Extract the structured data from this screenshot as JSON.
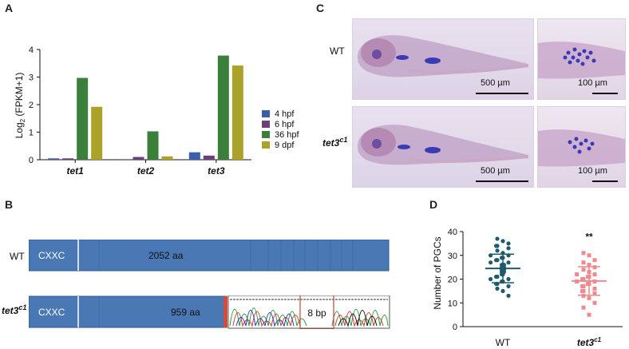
{
  "panels": {
    "a": {
      "letter": "A"
    },
    "b": {
      "letter": "B"
    },
    "c": {
      "letter": "C"
    },
    "d": {
      "letter": "D"
    }
  },
  "chart_data": [
    {
      "type": "bar",
      "panel": "A",
      "ylabel": "Log₂ (FPKM+1)",
      "ylabel_main": "Log",
      "ylabel_sub": "2",
      "ylabel_rest": " (FPKM+1)",
      "ylim": [
        0,
        4
      ],
      "yticks": [
        0,
        1,
        2,
        3,
        4
      ],
      "categories": [
        "tet1",
        "tet2",
        "tet3"
      ],
      "legend_position": "right",
      "series": [
        {
          "name": "4 hpf",
          "color": "#3a5fad",
          "values": [
            0.05,
            0.02,
            0.27
          ]
        },
        {
          "name": "6 hpf",
          "color": "#6b3f7a",
          "values": [
            0.05,
            0.1,
            0.15
          ]
        },
        {
          "name": "36 hpf",
          "color": "#3a7f3a",
          "values": [
            2.97,
            1.03,
            3.78
          ]
        },
        {
          "name": "9 dpf",
          "color": "#aba22a",
          "values": [
            1.92,
            0.12,
            3.42
          ]
        }
      ]
    },
    {
      "type": "scatter",
      "panel": "D",
      "ylabel": "Number of PGCs",
      "ylim": [
        0,
        40
      ],
      "yticks": [
        0,
        10,
        20,
        30,
        40
      ],
      "categories": [
        "WT",
        "tet3c1"
      ],
      "category_labels": [
        {
          "main": "WT",
          "sup": ""
        },
        {
          "main": "tet3",
          "sup": "c1"
        }
      ],
      "significance": "**",
      "series": [
        {
          "name": "WT",
          "color": "#1f5a6e",
          "marker": "circle",
          "mean": 24.5,
          "sd": 6,
          "values": [
            37,
            36,
            35,
            34,
            34,
            33,
            32,
            31,
            30,
            30,
            29,
            29,
            28,
            28,
            27,
            27,
            26,
            26,
            26,
            25,
            25,
            25,
            24,
            24,
            24,
            23,
            23,
            23,
            22,
            22,
            21,
            21,
            20,
            20,
            19,
            19,
            18,
            18,
            17,
            16,
            15,
            13
          ]
        },
        {
          "name": "tet3c1",
          "color": "#ee8a8e",
          "marker": "square",
          "mean": 19.2,
          "sd": 6,
          "values": [
            31,
            30,
            28,
            27,
            26,
            25,
            24,
            23,
            22,
            22,
            21,
            21,
            20,
            20,
            19,
            19,
            18,
            18,
            17,
            17,
            16,
            15,
            15,
            14,
            13,
            12,
            10,
            8,
            5
          ]
        }
      ]
    }
  ],
  "panel_b": {
    "wt": {
      "label": "WT",
      "domain": "CXXC",
      "length": "2052 aa"
    },
    "mutant": {
      "label_main": "tet3",
      "label_sup": "c1",
      "domain": "CXXC",
      "length": "959 aa",
      "deletion": "8 bp"
    },
    "bar_color": "#4a78b5",
    "stop_color": "#d64a3a"
  },
  "panel_c": {
    "rows": [
      {
        "label_main": "WT",
        "label_sup": "",
        "scale_whole": "500 µm",
        "scale_zoom": "100 µm"
      },
      {
        "label_main": "tet3",
        "label_sup": "c1",
        "scale_whole": "500 µm",
        "scale_zoom": "100 µm"
      }
    ]
  }
}
